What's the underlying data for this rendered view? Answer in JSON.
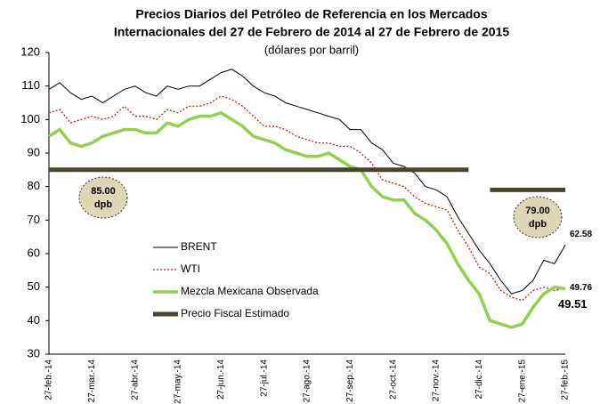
{
  "chart_data": {
    "type": "line",
    "title": [
      "Precios Diarios del Petróleo de Referencia en los Mercados",
      "Internacionales del 27 de Febrero de 2014 al 27 de Febrero de 2015"
    ],
    "subtitle": "(dólares por barril)",
    "categories": [
      "27-feb.-14",
      null,
      null,
      null,
      "27-mar.-14",
      null,
      null,
      null,
      "27-abr.-14",
      null,
      null,
      null,
      "27-may.-14",
      null,
      null,
      null,
      "27-jun.-14",
      null,
      null,
      null,
      "27-jul.-14",
      null,
      null,
      null,
      "27-ago.-14",
      null,
      null,
      null,
      "27-sep.-14",
      null,
      null,
      null,
      "27-oct.-14",
      null,
      null,
      null,
      "27-nov.-14",
      null,
      null,
      null,
      "27-dic.-14",
      null,
      null,
      null,
      "27-ene.-15",
      null,
      null,
      null,
      "27-feb.-15"
    ],
    "series": [
      {
        "name": "BRENT",
        "color": "#000000",
        "line_style": "solid",
        "values": [
          109,
          111,
          108,
          106,
          107,
          105,
          107,
          109,
          110,
          108,
          107,
          110,
          109,
          110,
          110,
          112,
          114,
          115,
          113,
          110,
          108,
          107,
          105,
          104,
          103,
          102,
          101,
          100,
          97,
          97,
          93,
          91,
          87,
          86,
          84,
          80,
          79,
          77,
          71,
          66,
          61,
          57,
          52,
          48,
          49,
          52,
          58,
          57,
          62.58
        ]
      },
      {
        "name": "WTI",
        "color": "#e00000",
        "line_style": "dotted",
        "values": [
          102,
          103,
          99,
          100,
          101,
          100,
          101,
          104,
          101,
          101,
          100,
          103,
          102,
          104,
          104,
          105,
          107,
          106,
          104,
          101,
          98,
          98,
          97,
          95,
          94,
          93,
          93,
          92,
          92,
          90,
          87,
          82,
          81,
          80,
          77,
          75,
          74,
          73,
          67,
          62,
          56,
          54,
          49,
          47,
          46,
          49,
          50,
          49,
          49.76
        ]
      },
      {
        "name": "Mezcla Mexicana Observada",
        "color": "#92d050",
        "line_style": "solid",
        "values": [
          95,
          97,
          93,
          92,
          93,
          95,
          96,
          97,
          97,
          96,
          96,
          99,
          98,
          100,
          101,
          101,
          102,
          100,
          98,
          95,
          94,
          93,
          91,
          90,
          89,
          89,
          90,
          88,
          86,
          85,
          80,
          77,
          76,
          76,
          72,
          70,
          67,
          63,
          57,
          52,
          48,
          40,
          39,
          38,
          39,
          44,
          48,
          50,
          49.51
        ]
      },
      {
        "name": "Precio Fiscal Estimado",
        "color": "#4a4531",
        "line_style": "solid",
        "values": [
          85,
          85,
          85,
          85,
          85,
          85,
          85,
          85,
          85,
          85,
          85,
          85,
          85,
          85,
          85,
          85,
          85,
          85,
          85,
          85,
          85,
          85,
          85,
          85,
          85,
          85,
          85,
          85,
          85,
          85,
          85,
          85,
          85,
          85,
          85,
          85,
          85,
          85,
          85,
          85,
          null,
          79,
          79,
          79,
          79,
          79,
          79,
          79,
          79
        ]
      }
    ],
    "end_labels": [
      0,
      1,
      2
    ],
    "annotations": [
      {
        "lines": [
          "85.00",
          "dpb"
        ],
        "at": 85
      },
      {
        "lines": [
          "79.00",
          "dpb"
        ],
        "at": 79
      }
    ],
    "ylim": [
      30,
      120
    ],
    "yticks": [
      30,
      40,
      50,
      60,
      70,
      80,
      90,
      100,
      110,
      120
    ],
    "grid": false
  }
}
